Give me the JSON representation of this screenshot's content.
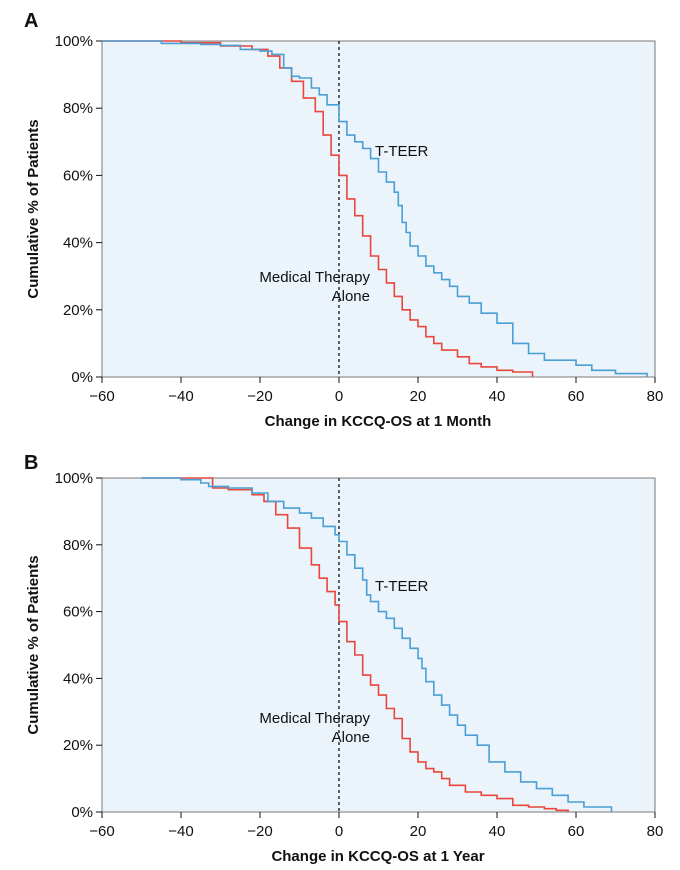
{
  "chart_data": [
    {
      "type": "line",
      "panel": "A",
      "xlabel": "Change in KCCQ-OS at 1 Month",
      "ylabel": "Cumulative % of Patients",
      "xlim": [
        -60,
        80
      ],
      "ylim": [
        0,
        100
      ],
      "xticks": [
        "−60",
        "−40",
        "−20",
        "0",
        "20",
        "40",
        "60",
        "80"
      ],
      "yticks": [
        "0%",
        "20%",
        "40%",
        "60%",
        "80%",
        "100%"
      ],
      "reference_line_x": 0,
      "series": [
        {
          "name": "T-TEER",
          "color": "#4a9fd5",
          "points": [
            [
              -60,
              100
            ],
            [
              -45,
              99.3
            ],
            [
              -35,
              99
            ],
            [
              -30,
              98.7
            ],
            [
              -25,
              97.5
            ],
            [
              -20,
              97
            ],
            [
              -17,
              96
            ],
            [
              -14,
              92
            ],
            [
              -12,
              89.5
            ],
            [
              -10,
              89
            ],
            [
              -7,
              86
            ],
            [
              -5,
              84
            ],
            [
              -3,
              81
            ],
            [
              0,
              76
            ],
            [
              2,
              72
            ],
            [
              4,
              70
            ],
            [
              6,
              68
            ],
            [
              8,
              65
            ],
            [
              10,
              61
            ],
            [
              12,
              58
            ],
            [
              14,
              55
            ],
            [
              15,
              51
            ],
            [
              16,
              46
            ],
            [
              17,
              43
            ],
            [
              18,
              39
            ],
            [
              20,
              36
            ],
            [
              22,
              33
            ],
            [
              24,
              31
            ],
            [
              26,
              29
            ],
            [
              28,
              27
            ],
            [
              30,
              24
            ],
            [
              33,
              22
            ],
            [
              36,
              19
            ],
            [
              40,
              16
            ],
            [
              44,
              10
            ],
            [
              48,
              7
            ],
            [
              52,
              5
            ],
            [
              60,
              3.5
            ],
            [
              64,
              2
            ],
            [
              70,
              1
            ],
            [
              78,
              0
            ]
          ]
        },
        {
          "name": "Medical Therapy Alone",
          "color": "#e8473b",
          "points": [
            [
              -60,
              100
            ],
            [
              -40,
              99.5
            ],
            [
              -33,
              99.5
            ],
            [
              -30,
              98.5
            ],
            [
              -25,
              98.5
            ],
            [
              -22,
              97.5
            ],
            [
              -18,
              95.5
            ],
            [
              -15,
              92
            ],
            [
              -12,
              88
            ],
            [
              -9,
              83
            ],
            [
              -6,
              79
            ],
            [
              -4,
              72
            ],
            [
              -2,
              66
            ],
            [
              0,
              60
            ],
            [
              2,
              53
            ],
            [
              4,
              48
            ],
            [
              6,
              42
            ],
            [
              8,
              36
            ],
            [
              10,
              32
            ],
            [
              12,
              28
            ],
            [
              14,
              24
            ],
            [
              16,
              20
            ],
            [
              18,
              17
            ],
            [
              20,
              15
            ],
            [
              22,
              12
            ],
            [
              24,
              10
            ],
            [
              26,
              8
            ],
            [
              30,
              6
            ],
            [
              33,
              4
            ],
            [
              36,
              3
            ],
            [
              40,
              2
            ],
            [
              44,
              1.5
            ],
            [
              49,
              0
            ]
          ]
        }
      ],
      "annotations": {
        "tteer": "T-TEER",
        "mta_line1": "Medical Therapy",
        "mta_line2": "Alone"
      }
    },
    {
      "type": "line",
      "panel": "B",
      "xlabel": "Change in KCCQ-OS at 1 Year",
      "ylabel": "Cumulative % of Patients",
      "xlim": [
        -60,
        80
      ],
      "ylim": [
        0,
        100
      ],
      "xticks": [
        "−60",
        "−40",
        "−20",
        "0",
        "20",
        "40",
        "60",
        "80"
      ],
      "yticks": [
        "0%",
        "20%",
        "40%",
        "60%",
        "80%",
        "100%"
      ],
      "reference_line_x": 0,
      "series": [
        {
          "name": "T-TEER",
          "color": "#4a9fd5",
          "points": [
            [
              -50,
              100
            ],
            [
              -40,
              99.5
            ],
            [
              -35,
              98.5
            ],
            [
              -33,
              97.5
            ],
            [
              -28,
              97
            ],
            [
              -22,
              95.5
            ],
            [
              -18,
              93
            ],
            [
              -14,
              91
            ],
            [
              -10,
              89.5
            ],
            [
              -7,
              88
            ],
            [
              -4,
              85.5
            ],
            [
              -1,
              83
            ],
            [
              0,
              81
            ],
            [
              2,
              77
            ],
            [
              4,
              73
            ],
            [
              6,
              69.5
            ],
            [
              7,
              65
            ],
            [
              8,
              63
            ],
            [
              10,
              60
            ],
            [
              12,
              58
            ],
            [
              14,
              55
            ],
            [
              16,
              52
            ],
            [
              18,
              49
            ],
            [
              20,
              46
            ],
            [
              21,
              43
            ],
            [
              22,
              39
            ],
            [
              24,
              35
            ],
            [
              26,
              32
            ],
            [
              28,
              29
            ],
            [
              30,
              26
            ],
            [
              32,
              23
            ],
            [
              35,
              20
            ],
            [
              38,
              15
            ],
            [
              42,
              12
            ],
            [
              46,
              9
            ],
            [
              50,
              7
            ],
            [
              54,
              5
            ],
            [
              58,
              3
            ],
            [
              62,
              1.5
            ],
            [
              66,
              1.5
            ],
            [
              69,
              0
            ]
          ]
        },
        {
          "name": "Medical Therapy Alone",
          "color": "#e8473b",
          "points": [
            [
              -50,
              100
            ],
            [
              -35,
              100
            ],
            [
              -32,
              97
            ],
            [
              -28,
              96.5
            ],
            [
              -22,
              95
            ],
            [
              -19,
              93
            ],
            [
              -16,
              89
            ],
            [
              -13,
              85
            ],
            [
              -10,
              79
            ],
            [
              -7,
              74
            ],
            [
              -5,
              70
            ],
            [
              -3,
              66
            ],
            [
              -1,
              62
            ],
            [
              0,
              57
            ],
            [
              2,
              51
            ],
            [
              4,
              47
            ],
            [
              6,
              41
            ],
            [
              8,
              38
            ],
            [
              10,
              35
            ],
            [
              12,
              31
            ],
            [
              14,
              28
            ],
            [
              16,
              22
            ],
            [
              18,
              18
            ],
            [
              20,
              15
            ],
            [
              22,
              13
            ],
            [
              24,
              12
            ],
            [
              26,
              10
            ],
            [
              28,
              8
            ],
            [
              32,
              6
            ],
            [
              36,
              5
            ],
            [
              40,
              4
            ],
            [
              44,
              2
            ],
            [
              48,
              1.5
            ],
            [
              52,
              1
            ],
            [
              55,
              0.5
            ],
            [
              58,
              0
            ]
          ]
        }
      ],
      "annotations": {
        "tteer": "T-TEER",
        "mta_line1": "Medical Therapy",
        "mta_line2": "Alone"
      }
    }
  ]
}
